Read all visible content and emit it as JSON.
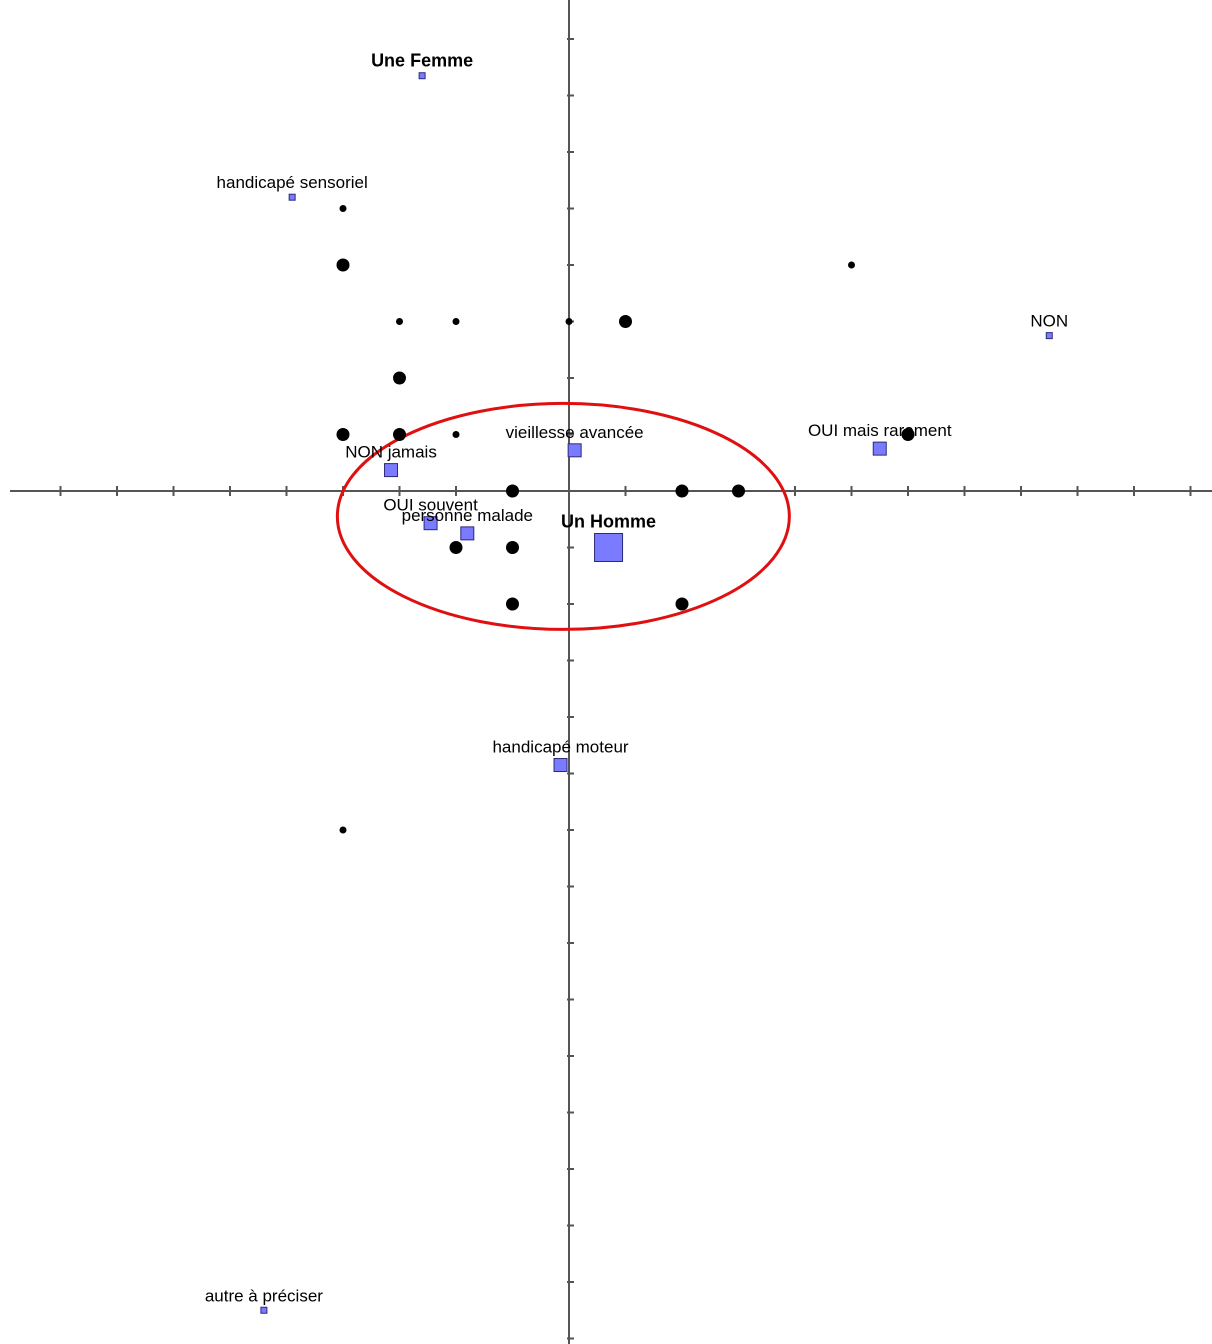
{
  "chart_data": {
    "type": "scatter",
    "title": "",
    "xlabel": "",
    "ylabel": "",
    "xlim": [
      -10,
      11
    ],
    "ylim": [
      -15,
      8.5
    ],
    "grid": false,
    "tick_step": 1,
    "axis_color": "#555555",
    "point_color": "#000000",
    "modality_color": "#7b7bff",
    "highlight_color": "#e01010",
    "individuals": [
      {
        "x": -4,
        "y": 5,
        "s": "small"
      },
      {
        "x": -4,
        "y": 4,
        "s": "large"
      },
      {
        "x": -3,
        "y": 3,
        "s": "small"
      },
      {
        "x": -2,
        "y": 3,
        "s": "small"
      },
      {
        "x": 0,
        "y": 3,
        "s": "small"
      },
      {
        "x": 1,
        "y": 3,
        "s": "large"
      },
      {
        "x": 5,
        "y": 4,
        "s": "small"
      },
      {
        "x": -3,
        "y": 2,
        "s": "large"
      },
      {
        "x": -4,
        "y": 1,
        "s": "large"
      },
      {
        "x": -3,
        "y": 1,
        "s": "large"
      },
      {
        "x": -2,
        "y": 1,
        "s": "small"
      },
      {
        "x": 6,
        "y": 1,
        "s": "large"
      },
      {
        "x": -1,
        "y": 0,
        "s": "large"
      },
      {
        "x": 2,
        "y": 0,
        "s": "large"
      },
      {
        "x": 3,
        "y": 0,
        "s": "large"
      },
      {
        "x": -2,
        "y": -1,
        "s": "large"
      },
      {
        "x": -1,
        "y": -1,
        "s": "large"
      },
      {
        "x": -1,
        "y": -2,
        "s": "large"
      },
      {
        "x": 2,
        "y": -2,
        "s": "large"
      },
      {
        "x": -4,
        "y": -6,
        "s": "small"
      }
    ],
    "modalities": [
      {
        "label": "Une Femme",
        "x": -2.6,
        "y": 7.35,
        "size": "xs",
        "bold": true
      },
      {
        "label": "handicapé sensoriel",
        "x": -4.9,
        "y": 5.2,
        "size": "xs",
        "bold": false
      },
      {
        "label": "NON",
        "x": 8.5,
        "y": 2.75,
        "size": "xs",
        "bold": false
      },
      {
        "label": "OUI mais rarement",
        "x": 5.5,
        "y": 0.75,
        "size": "sm",
        "bold": false
      },
      {
        "label": "vieillesse avancée",
        "x": 0.1,
        "y": 0.72,
        "size": "sm",
        "bold": false
      },
      {
        "label": "NON jamais",
        "x": -3.15,
        "y": 0.37,
        "size": "sm",
        "bold": false
      },
      {
        "label": "OUI souvent",
        "x": -2.45,
        "y": -0.57,
        "size": "sm",
        "bold": false
      },
      {
        "label": "personne malade",
        "x": -1.8,
        "y": -0.75,
        "size": "sm",
        "bold": false
      },
      {
        "label": "Un Homme",
        "x": 0.7,
        "y": -1.0,
        "size": "lg",
        "bold": true
      },
      {
        "label": "handicapé moteur",
        "x": -0.15,
        "y": -4.85,
        "size": "sm",
        "bold": false
      },
      {
        "label": "autre à préciser",
        "x": -5.4,
        "y": -14.5,
        "size": "xs",
        "bold": false
      }
    ],
    "highlight_ellipse": {
      "cx": -0.1,
      "cy": -0.45,
      "rx": 4.0,
      "ry": 2.0
    }
  }
}
